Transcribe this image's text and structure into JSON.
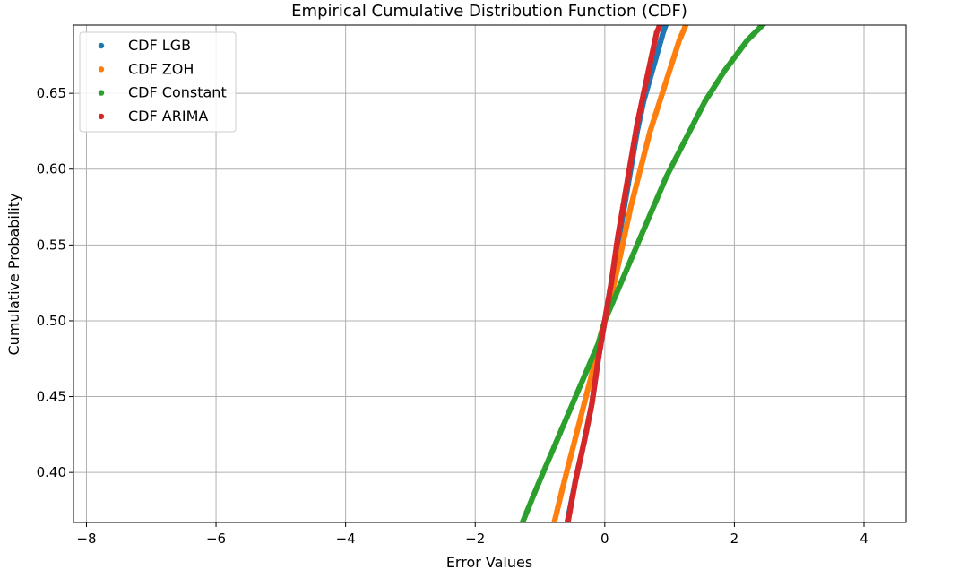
{
  "chart_data": {
    "type": "scatter",
    "title": "Empirical Cumulative Distribution Function (CDF)",
    "xlabel": "Error Values",
    "ylabel": "Cumulative Probability",
    "xlim": [
      -8.2,
      4.65
    ],
    "ylim": [
      0.367,
      0.695
    ],
    "x_ticks": [
      -8,
      -6,
      -4,
      -2,
      0,
      2,
      4
    ],
    "x_tick_labels": [
      "−8",
      "−6",
      "−4",
      "−2",
      "0",
      "2",
      "4"
    ],
    "y_ticks": [
      0.4,
      0.45,
      0.5,
      0.55,
      0.6,
      0.65
    ],
    "y_tick_labels": [
      "0.40",
      "0.45",
      "0.50",
      "0.55",
      "0.60",
      "0.65"
    ],
    "grid": true,
    "legend_position": "upper-left",
    "series": [
      {
        "name": "CDF LGB",
        "color": "#1f77b4",
        "x": [
          -0.58,
          -0.45,
          -0.32,
          -0.2,
          -0.1,
          0,
          0.1,
          0.2,
          0.3,
          0.4,
          0.5,
          0.6,
          0.7,
          0.8,
          0.9,
          0.98
        ],
        "y": [
          0.367,
          0.395,
          0.42,
          0.445,
          0.475,
          0.5,
          0.525,
          0.55,
          0.575,
          0.6,
          0.625,
          0.645,
          0.66,
          0.675,
          0.69,
          0.7
        ]
      },
      {
        "name": "CDF ZOH",
        "color": "#ff7f0e",
        "x": [
          -0.78,
          -0.65,
          -0.5,
          -0.35,
          -0.2,
          -0.1,
          0,
          0.12,
          0.25,
          0.4,
          0.55,
          0.7,
          0.85,
          1.0,
          1.15,
          1.3
        ],
        "y": [
          0.367,
          0.39,
          0.415,
          0.44,
          0.465,
          0.485,
          0.5,
          0.52,
          0.545,
          0.575,
          0.6,
          0.625,
          0.645,
          0.665,
          0.685,
          0.7
        ]
      },
      {
        "name": "CDF Constant",
        "color": "#2ca02c",
        "x": [
          -1.27,
          -1.05,
          -0.85,
          -0.65,
          -0.45,
          -0.25,
          -0.1,
          0,
          0.2,
          0.45,
          0.7,
          0.95,
          1.25,
          1.55,
          1.85,
          2.2,
          2.55
        ],
        "y": [
          0.367,
          0.39,
          0.41,
          0.43,
          0.45,
          0.47,
          0.485,
          0.5,
          0.52,
          0.545,
          0.57,
          0.595,
          0.62,
          0.645,
          0.665,
          0.685,
          0.7
        ]
      },
      {
        "name": "CDF ARIMA",
        "color": "#d62728",
        "x": [
          -0.57,
          -0.45,
          -0.32,
          -0.2,
          -0.1,
          0,
          0.1,
          0.2,
          0.3,
          0.4,
          0.5,
          0.6,
          0.7,
          0.8,
          0.9
        ],
        "y": [
          0.367,
          0.395,
          0.42,
          0.445,
          0.475,
          0.5,
          0.525,
          0.555,
          0.58,
          0.605,
          0.63,
          0.65,
          0.67,
          0.69,
          0.7
        ]
      }
    ]
  }
}
